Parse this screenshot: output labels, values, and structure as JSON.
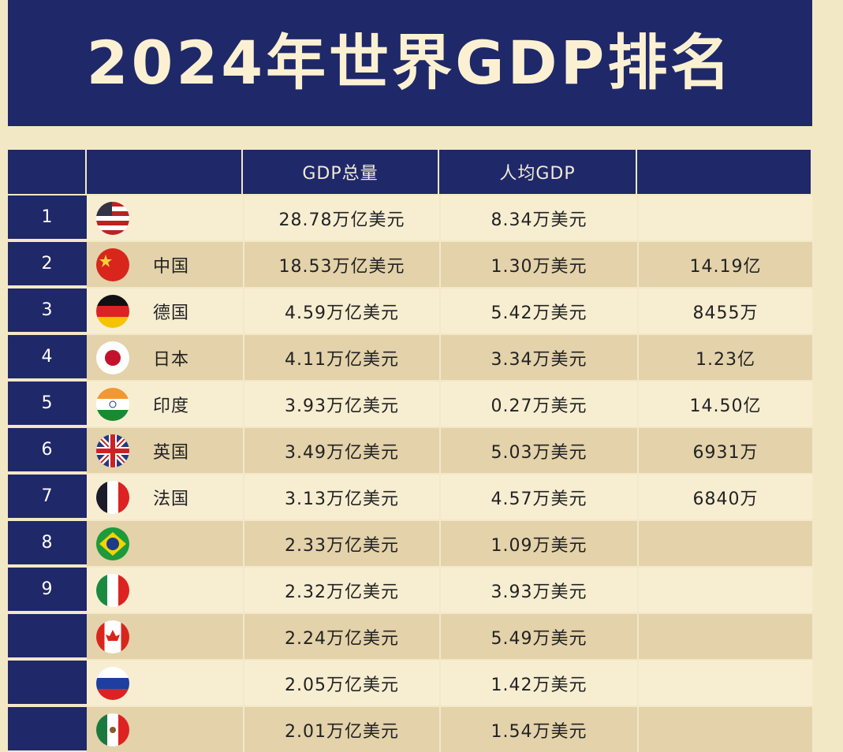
{
  "header": {
    "title": "2024年世界GDP排名"
  },
  "table": {
    "columns": [
      null,
      null,
      "GDP总量",
      "人均GDP",
      null
    ],
    "rows": [
      [
        "1",
        null,
        "28.78万亿美元",
        "8.34万美元",
        null
      ],
      [
        "2",
        "中国",
        "18.53万亿美元",
        "1.30万美元",
        "14.19亿"
      ],
      [
        "3",
        "德国",
        "4.59万亿美元",
        "5.42万美元",
        "8455万"
      ],
      [
        "4",
        "日本",
        "4.11万亿美元",
        "3.34万美元",
        "1.23亿"
      ],
      [
        "5",
        "印度",
        "3.93万亿美元",
        "0.27万美元",
        "14.50亿"
      ],
      [
        "6",
        "英国",
        "3.49万亿美元",
        "5.03万美元",
        "6931万"
      ],
      [
        "7",
        "法国",
        "3.13万亿美元",
        "4.57万美元",
        "6840万"
      ],
      [
        "8",
        null,
        "2.33万亿美元",
        "1.09万美元",
        null
      ],
      [
        "9",
        null,
        "2.32万亿美元",
        "3.93万美元",
        null
      ],
      [
        null,
        null,
        "2.24万亿美元",
        "5.49万美元",
        null
      ],
      [
        null,
        null,
        "2.05万亿美元",
        "1.42万美元",
        null
      ],
      [
        null,
        null,
        "2.01万亿美元",
        "1.54万美元",
        null
      ]
    ]
  }
}
